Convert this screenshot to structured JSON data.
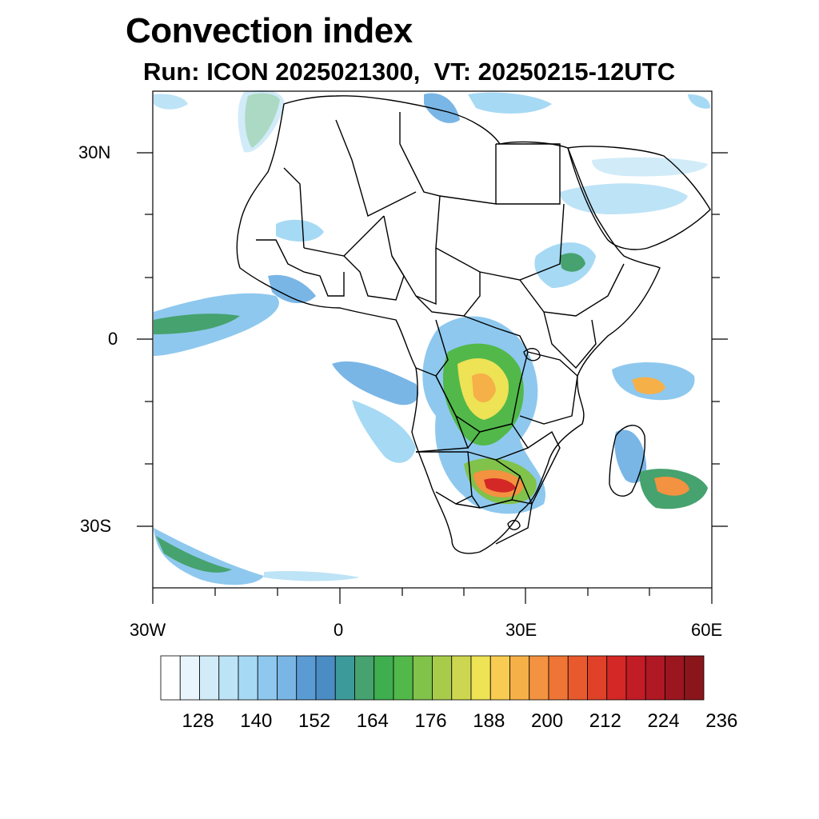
{
  "title": "Convection index",
  "subtitle": "Run: ICON 2025021300,  VT: 20250215-12UTC",
  "lat_labels": [
    "30N",
    "0",
    "30S"
  ],
  "lon_labels": [
    "30W",
    "0",
    "30E",
    "60E"
  ],
  "colorbar": {
    "colors": [
      "#ffffff",
      "#e8f5fc",
      "#d1ecf8",
      "#bde3f6",
      "#a6d9f4",
      "#8ec8ee",
      "#79b6e6",
      "#5a9bd4",
      "#4a8cc4",
      "#3d9a9a",
      "#46a26e",
      "#3fae4e",
      "#52b84a",
      "#80c24a",
      "#a8cc4a",
      "#cdd650",
      "#eee255",
      "#f8cc52",
      "#f6b048",
      "#f39240",
      "#ee7535",
      "#e85a2e",
      "#df4228",
      "#d42826",
      "#c21c26",
      "#b01824",
      "#9c1620",
      "#8a161c"
    ],
    "labels": [
      "128",
      "140",
      "152",
      "164",
      "176",
      "188",
      "200",
      "212",
      "224",
      "236"
    ]
  }
}
